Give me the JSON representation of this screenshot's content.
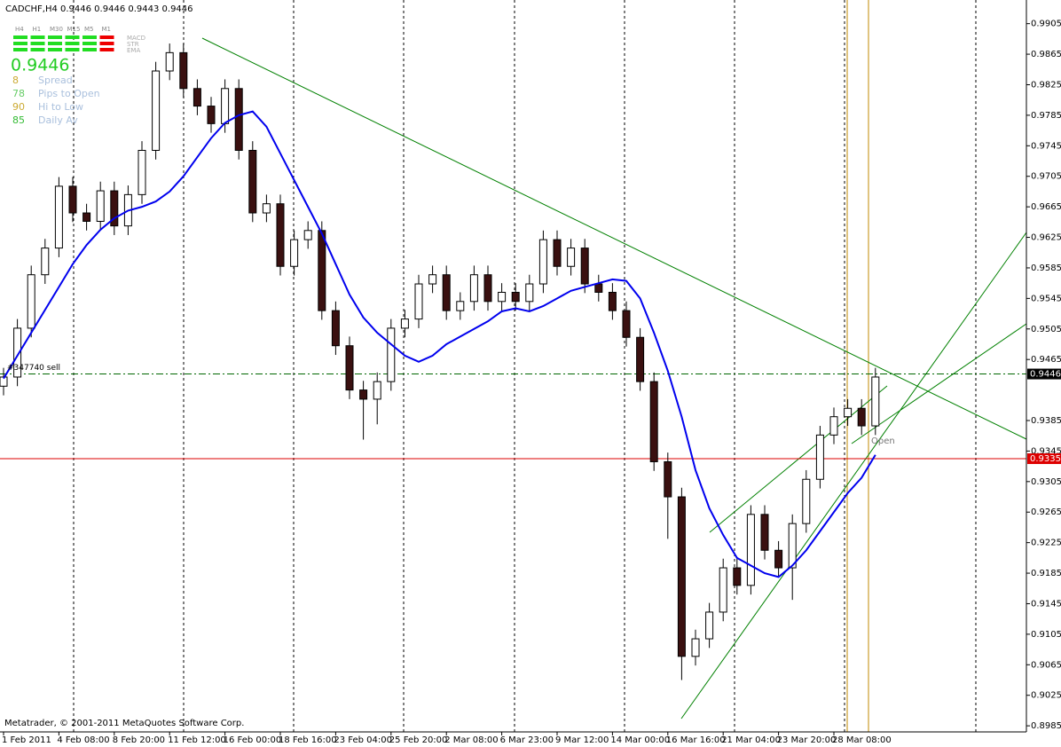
{
  "chart_data": {
    "type": "candlestick",
    "title": "CADCHF,H4  0.9446 0.9446 0.9443 0.9446",
    "footer": "Metatrader, © 2001-2011 MetaQuotes Software Corp.",
    "order_label": "#347740 sell",
    "open_label": "Open",
    "categories": [
      "1 Feb 2011",
      null,
      null,
      null,
      "4 Feb 08:00",
      null,
      null,
      null,
      "8 Feb 20:00",
      null,
      null,
      null,
      "11 Feb 12:00",
      null,
      null,
      null,
      "16 Feb 00:00",
      null,
      null,
      null,
      "18 Feb 16:00",
      null,
      null,
      null,
      "23 Feb 04:00",
      null,
      null,
      null,
      "25 Feb 20:00",
      null,
      null,
      null,
      "2 Mar 08:00",
      null,
      null,
      null,
      "6 Mar 23:00",
      null,
      null,
      null,
      "9 Mar 12:00",
      null,
      null,
      null,
      "14 Mar 00:00",
      null,
      null,
      null,
      "16 Mar 16:00",
      null,
      null,
      null,
      "21 Mar 04:00",
      null,
      null,
      null,
      "23 Mar 20:00",
      null,
      null,
      null,
      "28 Mar 08:00",
      null,
      null,
      null
    ],
    "open": [
      0.943,
      0.9442,
      0.9506,
      0.9576,
      0.9611,
      0.9692,
      0.9657,
      0.9646,
      0.9686,
      0.964,
      0.9681,
      0.9739,
      0.9843,
      0.9867,
      0.982,
      0.9797,
      0.9774,
      0.982,
      0.9739,
      0.9657,
      0.9669,
      0.9587,
      0.9622,
      0.9634,
      0.9529,
      0.9483,
      0.9425,
      0.9413,
      0.9436,
      0.9506,
      0.9518,
      0.9564,
      0.9576,
      0.9529,
      0.9541,
      0.9576,
      0.9541,
      0.9553,
      0.9541,
      0.9564,
      0.9622,
      0.9587,
      0.9611,
      0.9564,
      0.9553,
      0.9529,
      0.9494,
      0.9436,
      0.9331,
      0.9285,
      0.9076,
      0.9099,
      0.9134,
      0.9192,
      0.9169,
      0.9262,
      0.9215,
      0.9192,
      0.925,
      0.9308,
      0.9366,
      0.939,
      0.9401,
      0.9378
    ],
    "high": [
      0.9454,
      0.9518,
      0.9588,
      0.9623,
      0.9704,
      0.9704,
      0.9669,
      0.9698,
      0.9698,
      0.9693,
      0.9751,
      0.9855,
      0.9879,
      0.9879,
      0.9832,
      0.9809,
      0.9832,
      0.9832,
      0.9751,
      0.9681,
      0.9681,
      0.9634,
      0.9646,
      0.9646,
      0.9541,
      0.9495,
      0.9437,
      0.9448,
      0.9518,
      0.953,
      0.9576,
      0.9588,
      0.9588,
      0.9553,
      0.9588,
      0.9588,
      0.9565,
      0.9565,
      0.9576,
      0.9634,
      0.9634,
      0.9623,
      0.9623,
      0.9576,
      0.9565,
      0.9541,
      0.9506,
      0.9448,
      0.9343,
      0.9297,
      0.9111,
      0.9146,
      0.9204,
      0.9204,
      0.9274,
      0.9274,
      0.9227,
      0.9262,
      0.932,
      0.9378,
      0.9402,
      0.9413,
      0.9413,
      0.9454
    ],
    "low": [
      0.9418,
      0.943,
      0.9494,
      0.9564,
      0.9599,
      0.9645,
      0.9634,
      0.9634,
      0.9628,
      0.9628,
      0.9669,
      0.9727,
      0.9831,
      0.9808,
      0.9785,
      0.9762,
      0.9762,
      0.9727,
      0.9645,
      0.9645,
      0.9575,
      0.9575,
      0.961,
      0.9517,
      0.9471,
      0.9413,
      0.936,
      0.938,
      0.9424,
      0.9494,
      0.9506,
      0.9552,
      0.9517,
      0.9517,
      0.9529,
      0.9529,
      0.9529,
      0.9529,
      0.9529,
      0.9552,
      0.9575,
      0.9575,
      0.9552,
      0.9541,
      0.9517,
      0.9482,
      0.9424,
      0.9319,
      0.923,
      0.9045,
      0.9064,
      0.9087,
      0.9122,
      0.9157,
      0.9157,
      0.9203,
      0.918,
      0.915,
      0.9238,
      0.9296,
      0.9354,
      0.9378,
      0.9366,
      0.9366
    ],
    "close": [
      0.9442,
      0.9506,
      0.9576,
      0.9611,
      0.9692,
      0.9657,
      0.9646,
      0.9686,
      0.964,
      0.9681,
      0.9739,
      0.9843,
      0.9867,
      0.982,
      0.9797,
      0.9774,
      0.982,
      0.9739,
      0.9657,
      0.9669,
      0.9587,
      0.9622,
      0.9634,
      0.9529,
      0.9483,
      0.9425,
      0.9413,
      0.9436,
      0.9506,
      0.9518,
      0.9564,
      0.9576,
      0.9529,
      0.9541,
      0.9576,
      0.9541,
      0.9553,
      0.9541,
      0.9564,
      0.9622,
      0.9587,
      0.9611,
      0.9564,
      0.9553,
      0.9529,
      0.9494,
      0.9436,
      0.9331,
      0.9285,
      0.9076,
      0.9099,
      0.9134,
      0.9192,
      0.9169,
      0.9262,
      0.9215,
      0.9192,
      0.925,
      0.9308,
      0.9366,
      0.939,
      0.9401,
      0.9378,
      0.9442
    ],
    "up_color": "#ffffff",
    "down_color": "#3a1010",
    "ma": {
      "color": "#0000ee",
      "values": [
        0.944,
        0.947,
        0.95,
        0.953,
        0.956,
        0.959,
        0.9615,
        0.9635,
        0.965,
        0.966,
        0.9665,
        0.9672,
        0.9685,
        0.9705,
        0.973,
        0.9755,
        0.9775,
        0.9785,
        0.979,
        0.977,
        0.9735,
        0.97,
        0.9665,
        0.963,
        0.959,
        0.955,
        0.952,
        0.95,
        0.9485,
        0.947,
        0.9462,
        0.947,
        0.9485,
        0.9495,
        0.9505,
        0.9515,
        0.9528,
        0.9532,
        0.9528,
        0.9535,
        0.9545,
        0.9555,
        0.956,
        0.9565,
        0.957,
        0.9568,
        0.9545,
        0.95,
        0.945,
        0.939,
        0.932,
        0.927,
        0.9235,
        0.9205,
        0.9195,
        0.9185,
        0.918,
        0.9195,
        0.9215,
        0.924,
        0.9265,
        0.929,
        0.931,
        0.934
      ]
    },
    "price_line": {
      "value": 0.9446,
      "color": "#006600"
    },
    "level_line": {
      "value": 0.9335,
      "color": "#dd0000"
    },
    "ylim": [
      0.8977,
      0.9936
    ],
    "yticks": [
      0.9905,
      0.9865,
      0.9825,
      0.9785,
      0.9745,
      0.9705,
      0.9665,
      0.9625,
      0.9585,
      0.9545,
      0.9505,
      0.9465,
      0.9385,
      0.9345,
      0.9305,
      0.9265,
      0.9225,
      0.9185,
      0.9145,
      0.9105,
      0.9065,
      0.9025,
      0.8985
    ],
    "panel": {
      "timeframes": [
        "H4",
        "H1",
        "M30",
        "M15",
        "M5",
        "M1"
      ],
      "indicators": [
        "MACD",
        "STR",
        "EMA"
      ],
      "stats": [
        {
          "value": "8",
          "label": "Spread",
          "color": "#ccaa33"
        },
        {
          "value": "78",
          "label": "Pips to Open",
          "color": "#66cc66"
        },
        {
          "value": "90",
          "label": "Hi to Low",
          "color": "#ccaa33"
        },
        {
          "value": "85",
          "label": "Daily Av",
          "color": "#33bb33"
        }
      ]
    }
  }
}
